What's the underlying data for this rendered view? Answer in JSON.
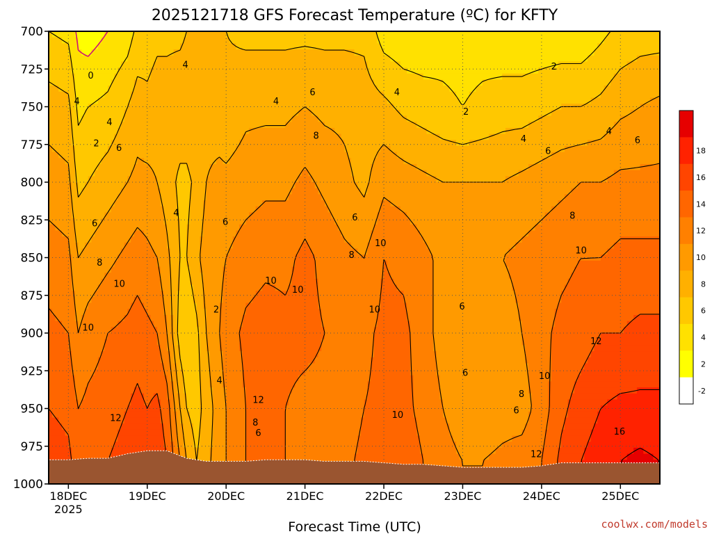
{
  "chart_data": {
    "type": "heatmap",
    "title": "2025121718 GFS Forecast Temperature (ºC) for KFTY",
    "xlabel": "Forecast Time (UTC)",
    "ylabel": "",
    "credit": "coolwx.com/models",
    "y_axis": {
      "ticks": [
        700,
        725,
        750,
        775,
        800,
        825,
        850,
        875,
        900,
        925,
        950,
        975,
        1000
      ],
      "range": [
        700,
        1000
      ],
      "units": "hPa",
      "inverted": true
    },
    "x_axis": {
      "range_hours": [
        0,
        186
      ],
      "ticks": [
        {
          "hour": 6,
          "label": "18DEC",
          "sublabel": "2025"
        },
        {
          "hour": 30,
          "label": "19DEC",
          "sublabel": ""
        },
        {
          "hour": 54,
          "label": "20DEC",
          "sublabel": ""
        },
        {
          "hour": 78,
          "label": "21DEC",
          "sublabel": ""
        },
        {
          "hour": 102,
          "label": "22DEC",
          "sublabel": ""
        },
        {
          "hour": 126,
          "label": "23DEC",
          "sublabel": ""
        },
        {
          "hour": 150,
          "label": "24DEC",
          "sublabel": ""
        },
        {
          "hour": 174,
          "label": "25DEC",
          "sublabel": ""
        }
      ]
    },
    "colorbar": {
      "levels": [
        -4,
        -2,
        0,
        2,
        4,
        6,
        8,
        10,
        12,
        14,
        16,
        18,
        20
      ],
      "labels": [
        "-2",
        "2",
        "4",
        "6",
        "8",
        "10",
        "12",
        "14",
        "16",
        "18"
      ],
      "colors": [
        "#33ee00",
        "#ffffff",
        "#ffff00",
        "#ffe100",
        "#ffc800",
        "#ffb000",
        "#ff9a00",
        "#ff8000",
        "#ff6600",
        "#ff4500",
        "#ff2200",
        "#e60000"
      ]
    },
    "colors": {
      "surface": "#9a5530",
      "freezing_line": "#cc1177"
    },
    "series": [
      {
        "name": "hour",
        "values": [
          0,
          6,
          9,
          12,
          18,
          24,
          27,
          30,
          33,
          36,
          40,
          42,
          45,
          48,
          52,
          54,
          60,
          66,
          72,
          78,
          84,
          90,
          96,
          102,
          108,
          114,
          120,
          126,
          132,
          138,
          144,
          150,
          156,
          162,
          168,
          174,
          180,
          186
        ]
      },
      {
        "name": "T_700",
        "values": [
          2,
          1.5,
          -0.5,
          -1,
          0,
          1,
          2.5,
          3,
          3.5,
          3.5,
          3.5,
          4,
          4,
          4.5,
          4,
          4,
          3.5,
          3.5,
          3.5,
          3.5,
          3.5,
          3.5,
          3.5,
          1,
          0.5,
          0.5,
          1,
          1,
          1,
          0.5,
          0.5,
          0.5,
          0.5,
          0.5,
          1.5,
          2.5,
          3,
          3
        ]
      },
      {
        "name": "T_750",
        "values": [
          5,
          4.5,
          1.5,
          2,
          2.5,
          4,
          5,
          4.5,
          5,
          5,
          5.5,
          5.5,
          6,
          5.5,
          5,
          4.5,
          5.5,
          5.5,
          5.5,
          6,
          5.5,
          5.5,
          5,
          4.5,
          3.5,
          3,
          2.5,
          2,
          2.5,
          3,
          3,
          3.5,
          4,
          4,
          4.5,
          5.5,
          6,
          6.5
        ]
      },
      {
        "name": "T_800",
        "values": [
          7,
          6.5,
          3.5,
          4,
          5,
          6,
          6.5,
          6.5,
          6,
          5,
          3.5,
          3.5,
          4.5,
          6,
          6.5,
          6.5,
          7,
          7.5,
          7.5,
          8.5,
          7.5,
          6.5,
          5.5,
          7.5,
          7,
          6.5,
          6,
          6,
          6,
          6,
          6.5,
          7,
          7.5,
          8,
          8,
          8.5,
          8.5,
          8.5
        ]
      },
      {
        "name": "T_850",
        "values": [
          9,
          8.5,
          6,
          6.5,
          7.5,
          8.5,
          9,
          8.5,
          8,
          6.5,
          4,
          4,
          5.5,
          7,
          7.5,
          8,
          9,
          9.5,
          9.5,
          10.5,
          9.5,
          8.5,
          8,
          10,
          9.5,
          8.5,
          7.5,
          7,
          7.5,
          8,
          8.5,
          9,
          9.5,
          10,
          10,
          10.5,
          10.5,
          10.5
        ]
      },
      {
        "name": "T_900",
        "values": [
          10.5,
          10,
          8,
          9,
          10,
          10.5,
          11,
          10.5,
          10,
          8,
          3,
          2,
          3.5,
          6,
          8,
          9,
          10.5,
          11,
          10.5,
          10.5,
          10,
          9,
          9.5,
          10.5,
          10.5,
          9,
          7,
          6,
          6.5,
          7,
          8,
          9.5,
          10.5,
          11,
          12,
          12,
          12.5,
          12.5
        ]
      },
      {
        "name": "T_950",
        "values": [
          12,
          11.5,
          10,
          10.5,
          11,
          12,
          12.5,
          12,
          12.5,
          11,
          6,
          4,
          3,
          5,
          7,
          8,
          10,
          11,
          10,
          9.5,
          9.5,
          9,
          10,
          10.5,
          10.5,
          9.5,
          8,
          6.5,
          6.5,
          7,
          7,
          9,
          11.5,
          13,
          14,
          14.5,
          14.5,
          14.5
        ]
      },
      {
        "name": "T_985",
        "values": [
          13,
          12.5,
          11,
          11.5,
          12,
          13,
          13.5,
          13,
          13.5,
          12,
          8,
          6,
          4,
          5.5,
          7,
          8,
          10,
          11,
          10,
          10,
          10,
          9.5,
          10.5,
          11,
          11,
          10,
          9,
          8,
          8,
          8.5,
          9,
          10,
          12.5,
          14,
          15,
          16,
          16.5,
          16
        ]
      }
    ],
    "surface_pressure": {
      "hour": [
        0,
        6,
        12,
        18,
        24,
        30,
        36,
        42,
        48,
        54,
        60,
        66,
        72,
        78,
        84,
        90,
        96,
        102,
        108,
        114,
        120,
        126,
        132,
        138,
        144,
        150,
        156,
        162,
        168,
        174,
        180,
        186
      ],
      "hPa": [
        984,
        984,
        983,
        983,
        980,
        978,
        978,
        983,
        985,
        985,
        985,
        984,
        984,
        984,
        985,
        985,
        985,
        986,
        987,
        987,
        988,
        989,
        989,
        989,
        989,
        988,
        986,
        986,
        986,
        986,
        986,
        986
      ]
    },
    "contour_labels": [
      {
        "text": "0",
        "hour": 12.8,
        "p": 729
      },
      {
        "text": "4",
        "hour": 8.6,
        "p": 746
      },
      {
        "text": "2",
        "hour": 14.5,
        "p": 774
      },
      {
        "text": "4",
        "hour": 18.5,
        "p": 760
      },
      {
        "text": "6",
        "hour": 21.4,
        "p": 777
      },
      {
        "text": "6",
        "hour": 14.0,
        "p": 827
      },
      {
        "text": "8",
        "hour": 15.5,
        "p": 853
      },
      {
        "text": "10",
        "hour": 21.5,
        "p": 867
      },
      {
        "text": "10",
        "hour": 12.0,
        "p": 896
      },
      {
        "text": "12",
        "hour": 20.4,
        "p": 956
      },
      {
        "text": "4",
        "hour": 41.6,
        "p": 722
      },
      {
        "text": "4",
        "hour": 38.8,
        "p": 820
      },
      {
        "text": "6",
        "hour": 53.8,
        "p": 826
      },
      {
        "text": "2",
        "hour": 51.0,
        "p": 884
      },
      {
        "text": "4",
        "hour": 52.0,
        "p": 931
      },
      {
        "text": "4",
        "hour": 69.2,
        "p": 746
      },
      {
        "text": "6",
        "hour": 80.3,
        "p": 740
      },
      {
        "text": "8",
        "hour": 81.4,
        "p": 769
      },
      {
        "text": "6",
        "hour": 93.2,
        "p": 823
      },
      {
        "text": "8",
        "hour": 92.2,
        "p": 848
      },
      {
        "text": "10",
        "hour": 67.6,
        "p": 865
      },
      {
        "text": "10",
        "hour": 75.8,
        "p": 871
      },
      {
        "text": "12",
        "hour": 63.8,
        "p": 944
      },
      {
        "text": "8",
        "hour": 62.9,
        "p": 959
      },
      {
        "text": "6",
        "hour": 63.8,
        "p": 966
      },
      {
        "text": "10",
        "hour": 101.0,
        "p": 840
      },
      {
        "text": "10",
        "hour": 99.2,
        "p": 884
      },
      {
        "text": "4",
        "hour": 106.0,
        "p": 740
      },
      {
        "text": "10",
        "hour": 106.2,
        "p": 954
      },
      {
        "text": "2",
        "hour": 127.0,
        "p": 753
      },
      {
        "text": "6",
        "hour": 125.8,
        "p": 882
      },
      {
        "text": "6",
        "hour": 126.8,
        "p": 926
      },
      {
        "text": "4",
        "hour": 144.5,
        "p": 771
      },
      {
        "text": "6",
        "hour": 152.0,
        "p": 779
      },
      {
        "text": "2",
        "hour": 153.8,
        "p": 723
      },
      {
        "text": "8",
        "hour": 159.4,
        "p": 822
      },
      {
        "text": "10",
        "hour": 162.0,
        "p": 845
      },
      {
        "text": "8",
        "hour": 143.9,
        "p": 940
      },
      {
        "text": "6",
        "hour": 142.3,
        "p": 951
      },
      {
        "text": "10",
        "hour": 150.9,
        "p": 928
      },
      {
        "text": "12",
        "hour": 166.6,
        "p": 905
      },
      {
        "text": "12",
        "hour": 148.4,
        "p": 980
      },
      {
        "text": "16",
        "hour": 173.7,
        "p": 965
      },
      {
        "text": "4",
        "hour": 170.5,
        "p": 766
      },
      {
        "text": "6",
        "hour": 179.2,
        "p": 772
      }
    ]
  }
}
